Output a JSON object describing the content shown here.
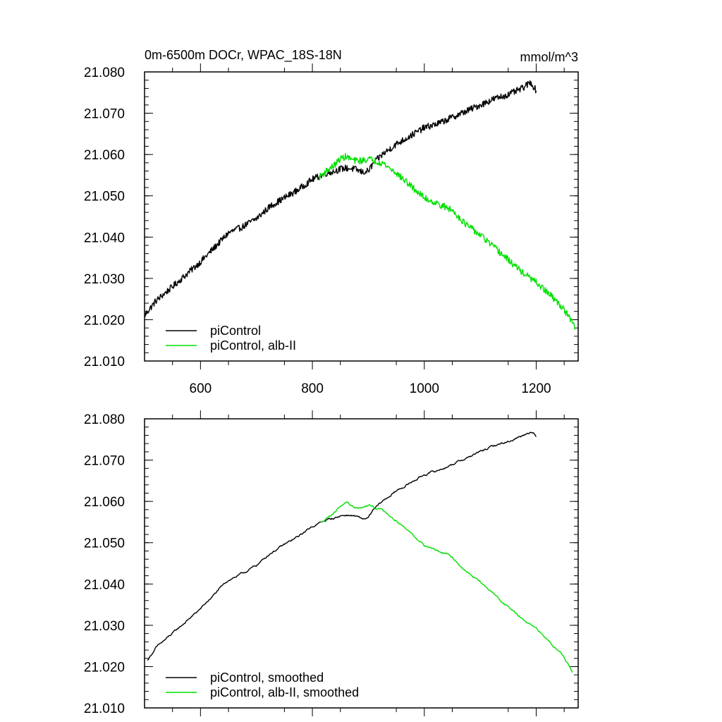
{
  "chart_data": [
    {
      "type": "line",
      "panel": "top",
      "title": "0m-6500m DOCr, WPAC_18S-18N",
      "units": "mmol/m^3",
      "xlim": [
        500,
        1275
      ],
      "ylim": [
        21.01,
        21.08
      ],
      "xticks": [
        600,
        800,
        1000,
        1200
      ],
      "xtick_labels": [
        "600",
        "800",
        "1000",
        "1200"
      ],
      "yticks": [
        21.01,
        21.02,
        21.03,
        21.04,
        21.05,
        21.06,
        21.07,
        21.08
      ],
      "ytick_labels": [
        "21.010",
        "21.020",
        "21.030",
        "21.040",
        "21.050",
        "21.060",
        "21.070",
        "21.080"
      ],
      "series": [
        {
          "name": "piControl",
          "color": "#000000",
          "noise": 0.0008,
          "x": [
            500,
            520,
            550,
            575,
            600,
            625,
            650,
            675,
            700,
            725,
            750,
            775,
            800,
            825,
            840,
            850,
            860,
            875,
            890,
            900,
            910,
            925,
            950,
            975,
            1000,
            1025,
            1050,
            1075,
            1100,
            1125,
            1150,
            1175,
            1190,
            1195,
            1200
          ],
          "y": [
            21.021,
            21.0245,
            21.028,
            21.031,
            21.034,
            21.0375,
            21.041,
            21.0425,
            21.0445,
            21.0475,
            21.0495,
            21.0515,
            21.054,
            21.0555,
            21.056,
            21.0565,
            21.0567,
            21.0565,
            21.0557,
            21.056,
            21.058,
            21.06,
            21.0625,
            21.0645,
            21.0665,
            21.0675,
            21.069,
            21.0705,
            21.072,
            21.0735,
            21.0745,
            21.076,
            21.0775,
            21.0765,
            21.0755
          ]
        },
        {
          "name": "piControl, alb-II",
          "color": "#00e000",
          "noise": 0.0008,
          "x": [
            812,
            825,
            840,
            850,
            860,
            875,
            890,
            900,
            910,
            925,
            950,
            975,
            1000,
            1025,
            1050,
            1075,
            1100,
            1125,
            1150,
            1175,
            1200,
            1225,
            1250,
            1270
          ],
          "y": [
            21.0545,
            21.056,
            21.0575,
            21.059,
            21.0595,
            21.0585,
            21.0585,
            21.059,
            21.0585,
            21.058,
            21.0555,
            21.0525,
            21.0495,
            21.048,
            21.0465,
            21.043,
            21.0405,
            21.0375,
            21.0345,
            21.0315,
            21.029,
            21.026,
            21.0225,
            21.018
          ]
        }
      ],
      "legend": [
        "piControl",
        "piControl, alb-II"
      ],
      "legend_position": "bottom-left"
    },
    {
      "type": "line",
      "panel": "bottom",
      "xlim": [
        500,
        1275
      ],
      "ylim": [
        21.01,
        21.08
      ],
      "xticks": [
        600,
        800,
        1000,
        1200
      ],
      "yticks": [
        21.01,
        21.02,
        21.03,
        21.04,
        21.05,
        21.06,
        21.07,
        21.08
      ],
      "ytick_labels": [
        "21.010",
        "21.020",
        "21.030",
        "21.040",
        "21.050",
        "21.060",
        "21.070",
        "21.080"
      ],
      "series": [
        {
          "name": "piControl, smoothed",
          "color": "#000000",
          "noise": 0.0003,
          "x": [
            505,
            520,
            550,
            575,
            600,
            625,
            650,
            675,
            700,
            725,
            750,
            775,
            800,
            825,
            840,
            850,
            860,
            875,
            890,
            900,
            910,
            925,
            950,
            975,
            1000,
            1025,
            1050,
            1075,
            1100,
            1125,
            1150,
            1175,
            1190,
            1195,
            1200
          ],
          "y": [
            21.0215,
            21.0245,
            21.028,
            21.031,
            21.034,
            21.0375,
            21.041,
            21.0425,
            21.0445,
            21.0475,
            21.0495,
            21.0515,
            21.054,
            21.0555,
            21.056,
            21.0565,
            21.0567,
            21.0565,
            21.0557,
            21.056,
            21.058,
            21.06,
            21.0625,
            21.0645,
            21.0665,
            21.0675,
            21.069,
            21.0705,
            21.072,
            21.0735,
            21.0745,
            21.076,
            21.077,
            21.0765,
            21.0755
          ]
        },
        {
          "name": "piControl, alb-II, smoothed",
          "color": "#00e000",
          "noise": 0.0003,
          "x": [
            815,
            825,
            840,
            850,
            860,
            875,
            890,
            900,
            910,
            925,
            950,
            975,
            1000,
            1025,
            1050,
            1075,
            1100,
            1125,
            1150,
            1175,
            1200,
            1225,
            1250,
            1265
          ],
          "y": [
            21.0548,
            21.056,
            21.0575,
            21.059,
            21.0595,
            21.0585,
            21.0585,
            21.059,
            21.0585,
            21.058,
            21.0555,
            21.0525,
            21.0495,
            21.048,
            21.0465,
            21.043,
            21.0405,
            21.0375,
            21.0345,
            21.0315,
            21.029,
            21.026,
            21.0225,
            21.0185
          ]
        }
      ],
      "legend": [
        "piControl, smoothed",
        "piControl, alb-II, smoothed"
      ],
      "legend_position": "bottom-left"
    }
  ]
}
